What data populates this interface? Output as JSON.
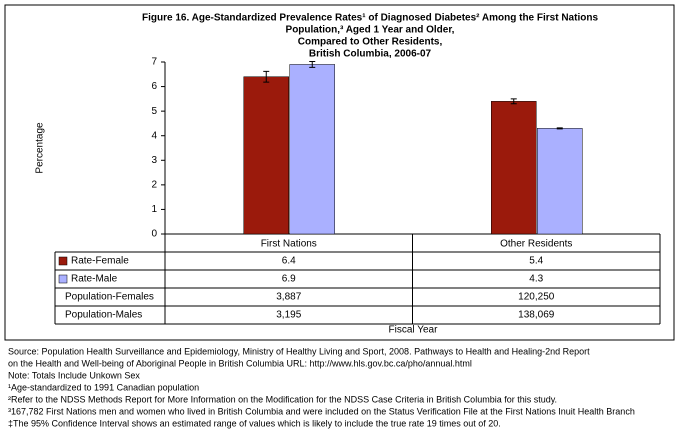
{
  "chart_data": {
    "type": "bar",
    "title_lines": [
      "Figure 16. Age-Standardized Prevalence Rates¹ of Diagnosed Diabetes² Among the First Nations",
      "Population,³  Aged 1 Year and Older,",
      "Compared to Other Residents,",
      "British Columbia, 2006-07"
    ],
    "y_label": "Percentage",
    "x_label": "Fiscal Year",
    "categories": [
      "First Nations",
      "Other Residents"
    ],
    "series": [
      {
        "name": "Rate-Female",
        "color": "#9b1a0c",
        "values": [
          6.4,
          5.4
        ],
        "errors": [
          0.22,
          0.1
        ]
      },
      {
        "name": "Rate-Male",
        "color": "#aab0ff",
        "values": [
          6.9,
          4.3
        ],
        "errors": [
          0.12,
          0.02
        ]
      }
    ],
    "table_rows": [
      {
        "name": "Population-Females",
        "cells": [
          "3,887",
          "120,250"
        ]
      },
      {
        "name": "Population-Males",
        "cells": [
          "3,195",
          "138,069"
        ]
      }
    ],
    "ylim": [
      0,
      7
    ],
    "yticks": [
      0,
      1,
      2,
      3,
      4,
      5,
      6,
      7
    ],
    "notes": [
      "Source: Population Health Surveillance and Epidemiology, Ministry of Healthy Living and Sport, 2008. Pathways to Health and Healing-2nd Report",
      "on the Health and Well-being of Aboriginal People in British Columbia URL: http://www.hls.gov.bc.ca/pho/annual.html",
      "Note: Totals Include Unkown Sex",
      "¹Age-standardized to 1991 Canadian population",
      "²Refer to the NDSS Methods Report for More Information on the Modification for the NDSS Case Criteria in British Columbia for this study.",
      "³167,782 First Nations men and women who lived in British Columbia and were included on the Status Verification File at the First Nations Inuit Health Branch",
      "‡The 95% Confidence Interval shows an estimated range of values which is likely to include the true rate 19 times out of 20."
    ]
  }
}
